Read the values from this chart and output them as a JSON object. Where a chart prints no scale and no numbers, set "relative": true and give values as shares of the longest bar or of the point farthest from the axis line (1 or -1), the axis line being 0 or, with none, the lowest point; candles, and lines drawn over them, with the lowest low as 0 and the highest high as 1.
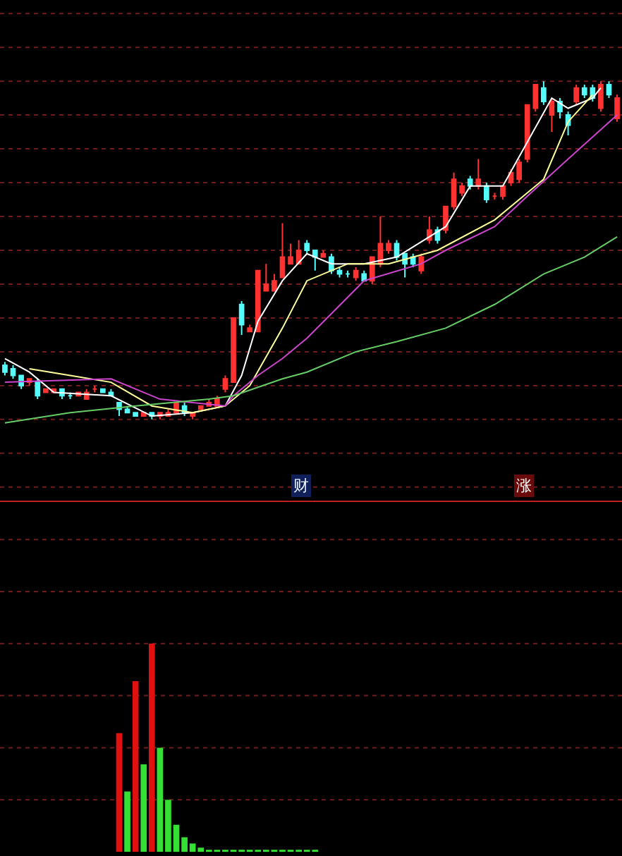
{
  "chart_data": [
    {
      "type": "candlestick",
      "relative": true,
      "ref_lines": [
        {
          "axis": "y",
          "value": -0.2,
          "color": "#6e1c1c",
          "line_style": "dotted"
        },
        {
          "axis": "y",
          "value": -0.1,
          "color": "#6e1c1c",
          "line_style": "dotted"
        },
        {
          "axis": "y",
          "value": 0,
          "color": "#6e1c1c",
          "line_style": "dotted"
        },
        {
          "axis": "y",
          "value": 0.1,
          "color": "#6e1c1c",
          "line_style": "dotted"
        },
        {
          "axis": "y",
          "value": 0.2,
          "color": "#6e1c1c",
          "line_style": "dotted"
        },
        {
          "axis": "y",
          "value": 0.3,
          "color": "#6e1c1c",
          "line_style": "dotted"
        },
        {
          "axis": "y",
          "value": 0.4,
          "color": "#6e1c1c",
          "line_style": "dotted"
        },
        {
          "axis": "y",
          "value": 0.5,
          "color": "#6e1c1c",
          "line_style": "dotted"
        },
        {
          "axis": "y",
          "value": 0.6,
          "color": "#6e1c1c",
          "line_style": "dotted"
        },
        {
          "axis": "y",
          "value": 0.7,
          "color": "#6e1c1c",
          "line_style": "dotted"
        },
        {
          "axis": "y",
          "value": 0.8,
          "color": "#6e1c1c",
          "line_style": "dotted"
        },
        {
          "axis": "y",
          "value": 0.9,
          "color": "#6e1c1c",
          "line_style": "dotted"
        },
        {
          "axis": "y",
          "value": 1,
          "color": "#6e1c1c",
          "line_style": "dotted"
        },
        {
          "axis": "y",
          "value": 1.1,
          "color": "#6e1c1c",
          "line_style": "dotted"
        },
        {
          "axis": "y",
          "value": 1.2,
          "color": "#6e1c1c",
          "line_style": "dotted"
        }
      ],
      "categories": [
        null,
        null,
        null,
        null,
        null,
        null,
        null,
        null,
        null,
        null,
        null,
        null,
        null,
        null,
        null,
        null,
        null,
        null,
        null,
        null,
        null,
        null,
        null,
        null,
        null,
        null,
        null,
        null,
        null,
        null,
        null,
        null,
        null,
        null,
        null,
        null,
        null,
        null,
        null,
        null,
        null,
        null,
        null,
        null,
        null,
        null,
        null,
        null,
        null,
        null,
        null,
        null,
        null,
        null,
        null,
        null,
        null,
        null,
        null,
        null,
        null,
        null,
        null,
        null,
        null,
        null,
        null,
        null,
        null,
        null,
        null,
        null,
        null,
        null,
        null,
        null
      ],
      "ohlc": [
        [
          0.16,
          0.17,
          0.13,
          0.14
        ],
        [
          0.15,
          0.16,
          0.12,
          0.13
        ],
        [
          0.13,
          0.13,
          0.09,
          0.1
        ],
        [
          0.11,
          0.12,
          0.1,
          0.12
        ],
        [
          0.11,
          0.12,
          0.06,
          0.07
        ],
        [
          0.08,
          0.09,
          0.08,
          0.09
        ],
        [
          0.08,
          0.09,
          0.08,
          0.09
        ],
        [
          0.09,
          0.09,
          0.06,
          0.07
        ],
        [
          0.07,
          0.08,
          0.06,
          0.07
        ],
        [
          0.07,
          0.08,
          0.07,
          0.08
        ],
        [
          0.06,
          0.09,
          0.06,
          0.08
        ],
        [
          0.09,
          0.1,
          0.08,
          0.09
        ],
        [
          0.09,
          0.09,
          0.08,
          0.08
        ],
        [
          0.08,
          0.09,
          0.07,
          0.07
        ],
        [
          0.05,
          0.05,
          0.01,
          0.03
        ],
        [
          0.03,
          0.04,
          0.02,
          0.02
        ],
        [
          0.02,
          0.02,
          0.01,
          0.01
        ],
        [
          0.01,
          0.02,
          0.01,
          0.02
        ],
        [
          0.02,
          0.02,
          0,
          0.01
        ],
        [
          0.01,
          0.02,
          0,
          0.02
        ],
        [
          0.01,
          0.03,
          0.01,
          0.02
        ],
        [
          0.02,
          0.05,
          0.02,
          0.05
        ],
        [
          0.04,
          0.05,
          0.01,
          0.02
        ],
        [
          0.01,
          0.02,
          0,
          0.02
        ],
        [
          0.03,
          0.04,
          0.03,
          0.04
        ],
        [
          0.04,
          0.06,
          0.04,
          0.05
        ],
        [
          0.04,
          0.07,
          0.04,
          0.06
        ],
        [
          0.09,
          0.13,
          0.08,
          0.12
        ],
        [
          0.11,
          0.3,
          0.11,
          0.3
        ],
        [
          0.34,
          0.35,
          0.25,
          0.28
        ],
        [
          0.26,
          0.28,
          0.26,
          0.27
        ],
        [
          0.26,
          0.44,
          0.26,
          0.44
        ],
        [
          0.38,
          0.46,
          0.38,
          0.4
        ],
        [
          0.38,
          0.43,
          0.38,
          0.41
        ],
        [
          0.42,
          0.58,
          0.42,
          0.48
        ],
        [
          0.46,
          0.52,
          0.46,
          0.48
        ],
        [
          0.46,
          0.53,
          0.46,
          0.5
        ],
        [
          0.52,
          0.53,
          0.49,
          0.5
        ],
        [
          0.5,
          0.5,
          0.44,
          0.48
        ],
        [
          0.48,
          0.5,
          0.48,
          0.49
        ],
        [
          0.48,
          0.49,
          0.43,
          0.44
        ],
        [
          0.44,
          0.45,
          0.42,
          0.43
        ],
        [
          0.43,
          0.44,
          0.42,
          0.43
        ],
        [
          0.42,
          0.45,
          0.41,
          0.44
        ],
        [
          0.43,
          0.44,
          0.41,
          0.41
        ],
        [
          0.41,
          0.48,
          0.4,
          0.48
        ],
        [
          0.46,
          0.6,
          0.45,
          0.52
        ],
        [
          0.5,
          0.53,
          0.49,
          0.52
        ],
        [
          0.52,
          0.53,
          0.47,
          0.48
        ],
        [
          0.49,
          0.49,
          0.42,
          0.46
        ],
        [
          0.48,
          0.49,
          0.45,
          0.46
        ],
        [
          0.44,
          0.49,
          0.43,
          0.48
        ],
        [
          0.53,
          0.6,
          0.52,
          0.56
        ],
        [
          0.56,
          0.57,
          0.52,
          0.53
        ],
        [
          0.56,
          0.63,
          0.55,
          0.63
        ],
        [
          0.63,
          0.73,
          0.62,
          0.71
        ],
        [
          0.67,
          0.7,
          0.66,
          0.69
        ],
        [
          0.71,
          0.72,
          0.68,
          0.69
        ],
        [
          0.69,
          0.77,
          0.68,
          0.71
        ],
        [
          0.69,
          0.7,
          0.64,
          0.65
        ],
        [
          0.66,
          0.67,
          0.65,
          0.66
        ],
        [
          0.66,
          0.69,
          0.65,
          0.69
        ],
        [
          0.7,
          0.74,
          0.69,
          0.73
        ],
        [
          0.71,
          0.77,
          0.7,
          0.76
        ],
        [
          0.77,
          0.93,
          0.76,
          0.93
        ],
        [
          0.92,
          0.99,
          0.91,
          0.99
        ],
        [
          0.98,
          1,
          0.93,
          0.94
        ],
        [
          0.9,
          0.95,
          0.85,
          0.94
        ],
        [
          0.94,
          0.95,
          0.89,
          0.91
        ],
        [
          0.9,
          0.91,
          0.84,
          0.87
        ],
        [
          0.94,
          0.99,
          0.93,
          0.98
        ],
        [
          0.98,
          0.99,
          0.95,
          0.96
        ],
        [
          0.98,
          0.99,
          0.94,
          0.95
        ],
        [
          0.92,
          1,
          0.91,
          0.99
        ],
        [
          0.99,
          1,
          0.95,
          0.96
        ],
        [
          0.89,
          0.96,
          0.88,
          0.95
        ]
      ],
      "colors": [
        "#54fcfc",
        "#54fcfc",
        "#54fcfc",
        "#ff3232",
        "#54fcfc",
        "#ff3232",
        "#ff3232",
        "#54fcfc",
        "#54fcfc",
        "#ff3232",
        "#ff3232",
        "#ff3232",
        "#54fcfc",
        "#54fcfc",
        "#54fcfc",
        "#54fcfc",
        "#54fcfc",
        "#ff3232",
        "#54fcfc",
        "#ff3232",
        "#ff3232",
        "#ff3232",
        "#54fcfc",
        "#ff3232",
        "#ff3232",
        "#ff3232",
        "#ff3232",
        "#ff3232",
        "#ff3232",
        "#54fcfc",
        "#ff3232",
        "#ff3232",
        "#ff3232",
        "#ff3232",
        "#ff3232",
        "#ff3232",
        "#ff3232",
        "#54fcfc",
        "#54fcfc",
        "#ff3232",
        "#54fcfc",
        "#54fcfc",
        "#54fcfc",
        "#ff3232",
        "#54fcfc",
        "#ff3232",
        "#ff3232",
        "#ff3232",
        "#54fcfc",
        "#54fcfc",
        "#54fcfc",
        "#ff3232",
        "#ff3232",
        "#54fcfc",
        "#ff3232",
        "#ff3232",
        "#ff3232",
        "#54fcfc",
        "#ff3232",
        "#54fcfc",
        "#ff3232",
        "#ff3232",
        "#ff3232",
        "#ff3232",
        "#ff3232",
        "#ff3232",
        "#54fcfc",
        "#ff3232",
        "#54fcfc",
        "#54fcfc",
        "#ff3232",
        "#54fcfc",
        "#54fcfc",
        "#ff3232",
        "#54fcfc",
        "#ff3232"
      ],
      "series": [
        {
          "type": "line",
          "color": "#ffffff",
          "values": [
            0.18,
            null,
            null,
            0.14,
            null,
            null,
            0.08,
            null,
            null,
            null,
            null,
            null,
            null,
            0.07,
            null,
            null,
            null,
            null,
            0.01,
            null,
            null,
            null,
            null,
            0.02,
            null,
            null,
            null,
            0.04,
            null,
            0.13,
            null,
            0.29,
            null,
            null,
            0.41,
            null,
            null,
            0.49,
            null,
            null,
            0.46,
            null,
            null,
            null,
            0.46,
            null,
            null,
            null,
            0.48,
            null,
            null,
            null,
            null,
            null,
            0.57,
            null,
            null,
            0.69,
            null,
            null,
            null,
            0.69,
            null,
            null,
            0.82,
            null,
            null,
            0.95,
            null,
            0.92,
            null,
            null,
            0.95,
            0.98,
            null,
            null
          ]
        },
        {
          "type": "line",
          "color": "#ffff99",
          "values": [
            null,
            null,
            null,
            0.15,
            null,
            null,
            null,
            null,
            0.13,
            null,
            null,
            null,
            null,
            0.11,
            null,
            null,
            null,
            null,
            0.04,
            null,
            null,
            null,
            null,
            0.02,
            null,
            null,
            null,
            0.04,
            null,
            null,
            0.1,
            null,
            null,
            null,
            0.27,
            null,
            null,
            0.41,
            null,
            null,
            null,
            null,
            0.46,
            null,
            null,
            null,
            null,
            0.46,
            null,
            null,
            null,
            null,
            null,
            0.5,
            null,
            null,
            null,
            null,
            null,
            null,
            0.59,
            null,
            null,
            null,
            null,
            null,
            0.71,
            null,
            null,
            0.88,
            null,
            null,
            0.96,
            null,
            null,
            null
          ]
        },
        {
          "type": "line",
          "color": "#cc44cc",
          "values": [
            0.11,
            null,
            null,
            null,
            null,
            null,
            null,
            null,
            null,
            null,
            null,
            null,
            null,
            0.12,
            null,
            null,
            null,
            null,
            null,
            0.06,
            null,
            null,
            null,
            null,
            null,
            null,
            null,
            0.04,
            0.07,
            null,
            null,
            0.13,
            null,
            null,
            0.18,
            null,
            0.22,
            0.24,
            null,
            null,
            null,
            null,
            null,
            null,
            0.41,
            null,
            null,
            null,
            null,
            null,
            null,
            0.46,
            null,
            null,
            0.5,
            null,
            null,
            null,
            null,
            null,
            0.57,
            null,
            null,
            null,
            0.66,
            null,
            null,
            null,
            null,
            0.77,
            null,
            null,
            null,
            null,
            null,
            0.9
          ]
        },
        {
          "type": "line",
          "color": "#66cc66",
          "values": [
            -0.01,
            null,
            null,
            null,
            null,
            null,
            null,
            null,
            0.02,
            null,
            null,
            null,
            null,
            null,
            null,
            null,
            0.04,
            null,
            null,
            null,
            null,
            null,
            null,
            null,
            null,
            0.06,
            null,
            null,
            0.07,
            null,
            null,
            null,
            null,
            null,
            0.12,
            null,
            null,
            0.14,
            null,
            null,
            null,
            null,
            null,
            0.2,
            null,
            null,
            null,
            null,
            0.23,
            null,
            null,
            null,
            null,
            null,
            0.27,
            null,
            null,
            null,
            null,
            null,
            0.34,
            null,
            null,
            null,
            null,
            null,
            0.43,
            null,
            null,
            null,
            null,
            0.48,
            null,
            null,
            null,
            0.54
          ]
        }
      ],
      "annotations": [
        "财",
        "涨"
      ]
    },
    {
      "type": "bar",
      "relative": true,
      "ref_lines": [
        {
          "axis": "y",
          "value": 0.25,
          "color": "#6e1c1c",
          "line_style": "dotted"
        },
        {
          "axis": "y",
          "value": 0.5,
          "color": "#6e1c1c",
          "line_style": "dotted"
        },
        {
          "axis": "y",
          "value": 0.75,
          "color": "#6e1c1c",
          "line_style": "dotted"
        },
        {
          "axis": "y",
          "value": 1,
          "color": "#6e1c1c",
          "line_style": "dotted"
        },
        {
          "axis": "y",
          "value": 1.25,
          "color": "#6e1c1c",
          "line_style": "dotted"
        },
        {
          "axis": "y",
          "value": 1.5,
          "color": "#6e1c1c",
          "line_style": "dotted"
        }
      ],
      "categories": [
        null,
        null,
        null,
        null,
        null,
        null,
        null,
        null,
        null,
        null,
        null,
        null,
        null,
        null,
        null,
        null,
        null,
        null,
        null,
        null,
        null,
        null,
        null,
        null,
        null,
        null,
        null,
        null,
        null,
        null,
        null,
        null,
        null,
        null,
        null,
        null,
        null,
        null,
        null,
        null,
        null,
        null,
        null,
        null,
        null,
        null,
        null,
        null,
        null,
        null,
        null,
        null,
        null,
        null,
        null,
        null,
        null,
        null,
        null,
        null,
        null,
        null,
        null,
        null,
        null,
        null,
        null,
        null,
        null,
        null,
        null,
        null,
        null,
        null,
        null,
        null
      ],
      "values": [
        null,
        null,
        null,
        null,
        null,
        null,
        null,
        null,
        null,
        null,
        null,
        null,
        null,
        null,
        0.57,
        0.29,
        0.82,
        0.42,
        1,
        0.5,
        0.25,
        0.13,
        0.07,
        0.04,
        0.02,
        0.01,
        0.01,
        0.01,
        0.01,
        0.01,
        0.01,
        0.01,
        0.01,
        0.01,
        0.01,
        0.01,
        0.01,
        0.01,
        0.01,
        null,
        null,
        null,
        null,
        null,
        null,
        null,
        null,
        null,
        null,
        null,
        null,
        null,
        null,
        null,
        null,
        null,
        null,
        null,
        null,
        null,
        null,
        null,
        null,
        null,
        null,
        null,
        null,
        null,
        null,
        null,
        null,
        null,
        null,
        null,
        null,
        null
      ],
      "colors": [
        null,
        null,
        null,
        null,
        null,
        null,
        null,
        null,
        null,
        null,
        null,
        null,
        null,
        null,
        "#e01010",
        "#33e033",
        "#e01010",
        "#33e033",
        "#e01010",
        "#33e033",
        "#33e033",
        "#33e033",
        "#33e033",
        "#33e033",
        "#33e033",
        "#33e033",
        "#33e033",
        "#33e033",
        "#33e033",
        "#33e033",
        "#33e033",
        "#33e033",
        "#33e033",
        "#33e033",
        "#33e033",
        "#33e033",
        "#33e033",
        "#33e033",
        "#33e033",
        null,
        null,
        null,
        null,
        null,
        null,
        null,
        null,
        null,
        null,
        null,
        null,
        null,
        null,
        null,
        null,
        null,
        null,
        null,
        null,
        null,
        null,
        null,
        null,
        null,
        null,
        null,
        null,
        null,
        null,
        null,
        null,
        null,
        null,
        null,
        null,
        null
      ]
    }
  ]
}
